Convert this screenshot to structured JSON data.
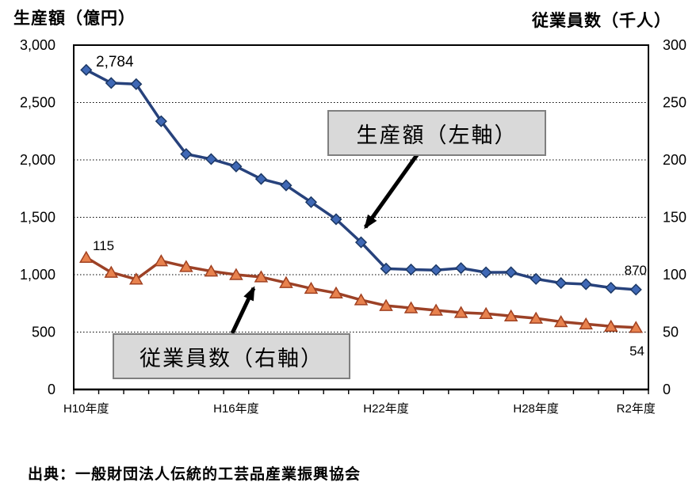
{
  "header": {
    "left_axis_title": "生産額（億円）",
    "right_axis_title": "従業員数（千人）"
  },
  "chart_data": {
    "type": "line",
    "title": "",
    "categories": [
      "H10年度",
      "H11年度",
      "H12年度",
      "H13年度",
      "H14年度",
      "H15年度",
      "H16年度",
      "H17年度",
      "H18年度",
      "H19年度",
      "H20年度",
      "H21年度",
      "H22年度",
      "H23年度",
      "H24年度",
      "H25年度",
      "H26年度",
      "H27年度",
      "H28年度",
      "H29年度",
      "H30年度",
      "R1年度",
      "R2年度"
    ],
    "x_ticks_shown": [
      {
        "index": 0,
        "label": "H10年度"
      },
      {
        "index": 6,
        "label": "H16年度"
      },
      {
        "index": 12,
        "label": "H22年度"
      },
      {
        "index": 18,
        "label": "H28年度"
      },
      {
        "index": 22,
        "label": "R2年度"
      }
    ],
    "series": [
      {
        "name": "生産額（左軸）",
        "axis": "left",
        "marker": "diamond",
        "line_color": "#27427c",
        "marker_fill": "#3f68b5",
        "marker_stroke": "#1b3764",
        "values": [
          2784,
          2670,
          2660,
          2337,
          2051,
          2007,
          1943,
          1834,
          1778,
          1632,
          1483,
          1282,
          1053,
          1045,
          1040,
          1057,
          1020,
          1021,
          963,
          927,
          917,
          886,
          870
        ]
      },
      {
        "name": "従業員数（右軸）",
        "axis": "right",
        "marker": "triangle",
        "line_color": "#9c4126",
        "marker_fill": "#e8824e",
        "marker_stroke": "#a04020",
        "values": [
          115,
          102,
          96,
          112,
          107,
          103,
          100,
          98,
          93,
          88,
          84,
          78,
          73,
          71,
          69,
          67,
          66,
          64,
          62,
          59,
          57,
          55,
          54
        ]
      }
    ],
    "left_axis": {
      "min": 0,
      "max": 3000,
      "step": 500,
      "tick_labels": [
        "3,000",
        "2,500",
        "2,000",
        "1,500",
        "1,000",
        "500",
        "0"
      ]
    },
    "right_axis": {
      "min": 0,
      "max": 300,
      "step": 50,
      "tick_labels": [
        "300",
        "250",
        "200",
        "150",
        "100",
        "50",
        "0"
      ]
    },
    "grid": "horizontal-dotted",
    "grid_color": "#000000",
    "legend_position": "none",
    "point_labels": {
      "production_first": "2,784",
      "production_last": "870",
      "employees_first": "115",
      "employees_last": "54"
    }
  },
  "annotations": {
    "production_label": "生産額（左軸）",
    "employees_label": "従業員数（右軸）",
    "box_fill": "#d9d9d9",
    "box_border": "#7f7f7f",
    "arrow_color": "#000000"
  },
  "footer": {
    "source": "出典：一般財団法人伝統的工芸品産業振興協会"
  }
}
